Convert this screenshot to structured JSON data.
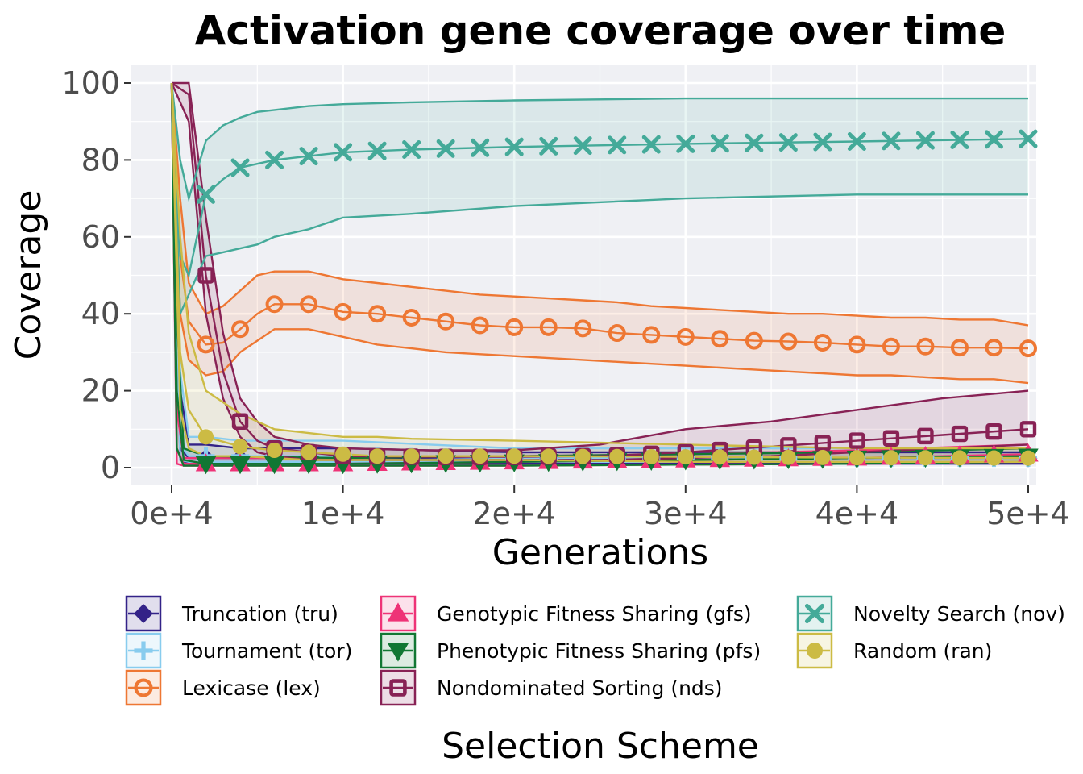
{
  "chart_data": {
    "type": "line",
    "title": "Activation gene coverage over time",
    "xlabel": "Generations",
    "ylabel": "Coverage",
    "xlim": [
      -2500,
      51000
    ],
    "ylim": [
      -5,
      105
    ],
    "xticks": [
      0,
      10000,
      20000,
      30000,
      40000,
      50000
    ],
    "xtick_labels": [
      "0e+4",
      "1e+4",
      "2e+4",
      "3e+4",
      "4e+4",
      "5e+4"
    ],
    "yticks": [
      0,
      20,
      40,
      60,
      80,
      100
    ],
    "ytick_labels": [
      "0",
      "20",
      "40",
      "60",
      "80",
      "100"
    ],
    "grid": true,
    "legend_title": "Selection Scheme",
    "legend_position": "bottom",
    "marker_x": [
      2000,
      4000,
      6000,
      8000,
      10000,
      12000,
      14000,
      16000,
      18000,
      20000,
      22000,
      24000,
      26000,
      28000,
      30000,
      32000,
      34000,
      36000,
      38000,
      40000,
      42000,
      44000,
      46000,
      48000,
      50000
    ],
    "series": [
      {
        "name": "Truncation (tru)",
        "color": "#332288",
        "marker": "diamond",
        "x": [
          0,
          500,
          1000,
          2000,
          4000,
          6000,
          8000,
          10000,
          20000,
          30000,
          40000,
          50000
        ],
        "median": [
          100,
          5,
          2.5,
          2.5,
          2.5,
          2.5,
          2.5,
          2.5,
          2.5,
          2.5,
          2.5,
          2.5
        ],
        "lower": [
          100,
          2,
          1,
          1,
          1,
          1,
          1,
          1,
          1,
          1,
          1,
          1
        ],
        "upper": [
          100,
          20,
          6,
          6,
          5,
          5,
          5,
          5,
          4,
          4,
          4,
          4
        ]
      },
      {
        "name": "Tournament (tor)",
        "color": "#88CCEE",
        "marker": "plus",
        "x": [
          0,
          500,
          1000,
          2000,
          4000,
          6000,
          8000,
          10000,
          20000,
          30000,
          40000,
          50000
        ],
        "median": [
          100,
          6,
          3,
          3,
          3,
          3,
          3,
          3,
          2.5,
          2.5,
          2.5,
          2.5
        ],
        "lower": [
          100,
          2,
          1.5,
          1.5,
          1.5,
          1.5,
          1.5,
          1.5,
          1.5,
          1.5,
          1.5,
          1.5
        ],
        "upper": [
          100,
          25,
          8,
          8,
          7,
          7,
          7,
          7,
          5,
          5,
          5,
          5
        ]
      },
      {
        "name": "Lexicase (lex)",
        "color": "#EE7733",
        "marker": "circle-open",
        "x": [
          0,
          500,
          1000,
          2000,
          3000,
          4000,
          5000,
          6000,
          8000,
          10000,
          12000,
          14000,
          16000,
          18000,
          20000,
          22000,
          24000,
          26000,
          28000,
          30000,
          32000,
          34000,
          36000,
          38000,
          40000,
          42000,
          44000,
          46000,
          48000,
          50000
        ],
        "median": [
          100,
          55,
          38,
          32,
          32.5,
          36,
          40,
          42.5,
          42.5,
          40.5,
          40,
          39,
          38,
          37,
          36.5,
          36.5,
          36.2,
          35,
          34.5,
          34,
          33.5,
          33,
          32.8,
          32.5,
          32,
          31.5,
          31.5,
          31.2,
          31.2,
          31
        ],
        "lower": [
          100,
          40,
          28,
          24,
          25,
          30,
          33,
          36,
          36,
          34,
          32,
          31,
          30,
          29.5,
          29,
          28.5,
          28,
          27.5,
          27,
          26.5,
          26,
          25.5,
          25,
          24.5,
          24,
          24,
          23.5,
          23,
          23,
          22
        ],
        "upper": [
          100,
          70,
          48,
          40,
          42,
          46,
          50,
          51,
          51,
          49,
          48,
          47,
          46,
          45,
          44.5,
          44,
          43.5,
          43,
          42,
          41.5,
          41,
          40.5,
          40,
          40,
          39.5,
          39,
          39,
          38.5,
          38.5,
          37
        ]
      },
      {
        "name": "Genotypic Fitness Sharing (gfs)",
        "color": "#EE3377",
        "marker": "triangle",
        "x": [
          0,
          300,
          700,
          2000,
          10000,
          20000,
          30000,
          40000,
          50000
        ],
        "median": [
          100,
          5,
          1,
          1,
          1,
          1.5,
          2,
          2.5,
          3.5
        ],
        "lower": [
          100,
          1,
          0.5,
          0.5,
          0.5,
          0.5,
          0.8,
          1,
          1.5
        ],
        "upper": [
          100,
          15,
          2.5,
          2.5,
          2.5,
          3,
          3.5,
          4.5,
          6
        ]
      },
      {
        "name": "Phenotypic Fitness Sharing (pfs)",
        "color": "#117733",
        "marker": "triangle-down",
        "x": [
          0,
          300,
          700,
          2000,
          10000,
          20000,
          30000,
          40000,
          50000
        ],
        "median": [
          100,
          20,
          2,
          1,
          1,
          1.5,
          2,
          2.5,
          3
        ],
        "lower": [
          100,
          5,
          0.5,
          0.5,
          0.5,
          0.5,
          0.8,
          1,
          1.5
        ],
        "upper": [
          100,
          40,
          5,
          3,
          2.5,
          3,
          3.5,
          4,
          5
        ]
      },
      {
        "name": "Nondominated Sorting (nds)",
        "color": "#882255",
        "marker": "square-open",
        "x": [
          0,
          1000,
          2000,
          3000,
          4000,
          5000,
          6000,
          8000,
          10000,
          15000,
          20000,
          25000,
          30000,
          35000,
          40000,
          45000,
          50000
        ],
        "median": [
          100,
          97,
          50,
          25,
          12,
          7,
          5,
          4,
          3,
          2.8,
          2.8,
          3,
          4,
          5.5,
          7,
          8.5,
          10
        ],
        "lower": [
          100,
          90,
          40,
          18,
          8,
          4,
          3,
          2,
          2,
          2,
          2,
          2,
          2.5,
          3,
          4,
          5,
          6
        ],
        "upper": [
          100,
          100,
          65,
          35,
          18,
          12,
          8,
          6,
          5,
          4.5,
          4.5,
          6,
          10,
          12,
          15,
          18,
          20
        ]
      },
      {
        "name": "Novelty Search (nov)",
        "color": "#44AA99",
        "marker": "x",
        "x": [
          0,
          500,
          1000,
          2000,
          3000,
          4000,
          5000,
          6000,
          8000,
          10000,
          14000,
          20000,
          30000,
          40000,
          50000
        ],
        "median": [
          100,
          55,
          50,
          71,
          75,
          78,
          79,
          80,
          81,
          82,
          82.7,
          83.4,
          84.2,
          84.8,
          85.5
        ],
        "lower": [
          100,
          40,
          45,
          55,
          56,
          57,
          58,
          60,
          62,
          65,
          66,
          68,
          70,
          71,
          71
        ],
        "upper": [
          100,
          80,
          70,
          85,
          89,
          91,
          92.5,
          93,
          94,
          94.5,
          95,
          95.5,
          96,
          96,
          96
        ]
      },
      {
        "name": "Random (ran)",
        "color": "#CCBB44",
        "marker": "dot",
        "x": [
          0,
          500,
          1000,
          2000,
          4000,
          6000,
          8000,
          10000,
          12000,
          14000,
          20000,
          30000,
          40000,
          50000
        ],
        "median": [
          100,
          30,
          15,
          8,
          5.5,
          4.5,
          4,
          3.5,
          3,
          3,
          3,
          2.8,
          2.6,
          2.5
        ],
        "lower": [
          100,
          15,
          5,
          3,
          3,
          2.5,
          2,
          2,
          2,
          2,
          2,
          1.5,
          1.5,
          1.5
        ],
        "upper": [
          100,
          60,
          35,
          20,
          14,
          10,
          9,
          8,
          8,
          7.5,
          7,
          6,
          5,
          5
        ]
      }
    ]
  }
}
